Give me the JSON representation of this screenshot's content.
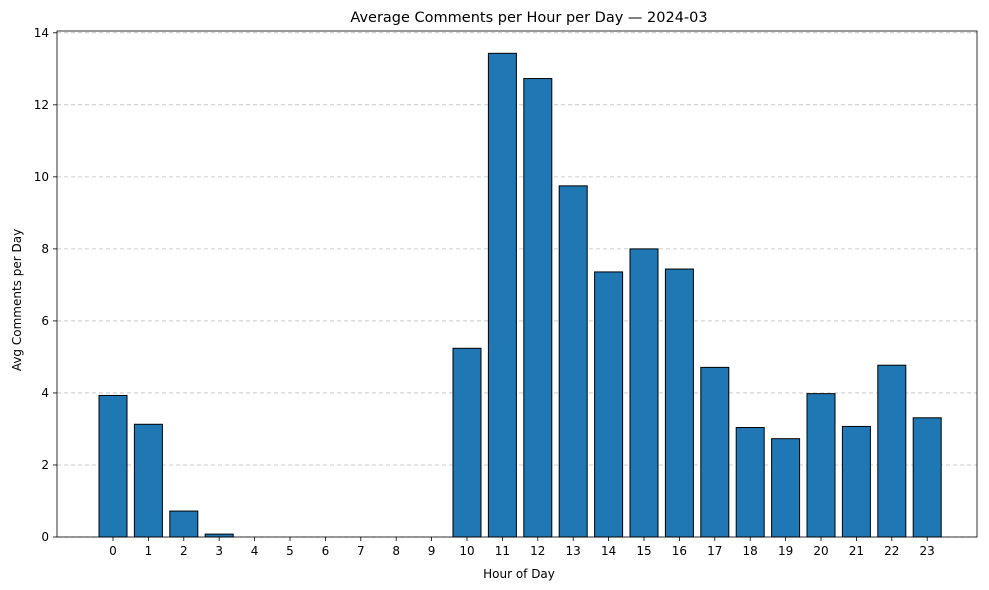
{
  "chart_data": {
    "type": "bar",
    "title": "Average Comments per Hour per Day — 2024-03",
    "xlabel": "Hour of Day",
    "ylabel": "Avg Comments per Day",
    "categories": [
      "0",
      "1",
      "2",
      "3",
      "4",
      "5",
      "6",
      "7",
      "8",
      "9",
      "10",
      "11",
      "12",
      "13",
      "14",
      "15",
      "16",
      "17",
      "18",
      "19",
      "20",
      "21",
      "22",
      "23"
    ],
    "values": [
      3.93,
      3.13,
      0.72,
      0.08,
      0,
      0,
      0,
      0,
      0,
      0,
      5.24,
      13.43,
      12.73,
      9.75,
      7.36,
      8.0,
      7.44,
      4.71,
      3.04,
      2.73,
      3.98,
      3.07,
      4.77,
      3.31
    ],
    "ylim": [
      0,
      14.05
    ],
    "yticks": [
      "0",
      "2",
      "4",
      "6",
      "8",
      "10",
      "12",
      "14"
    ],
    "grid": "y-axis dashed",
    "bar_color": "#1f77b4",
    "edge_color": "#000000"
  }
}
